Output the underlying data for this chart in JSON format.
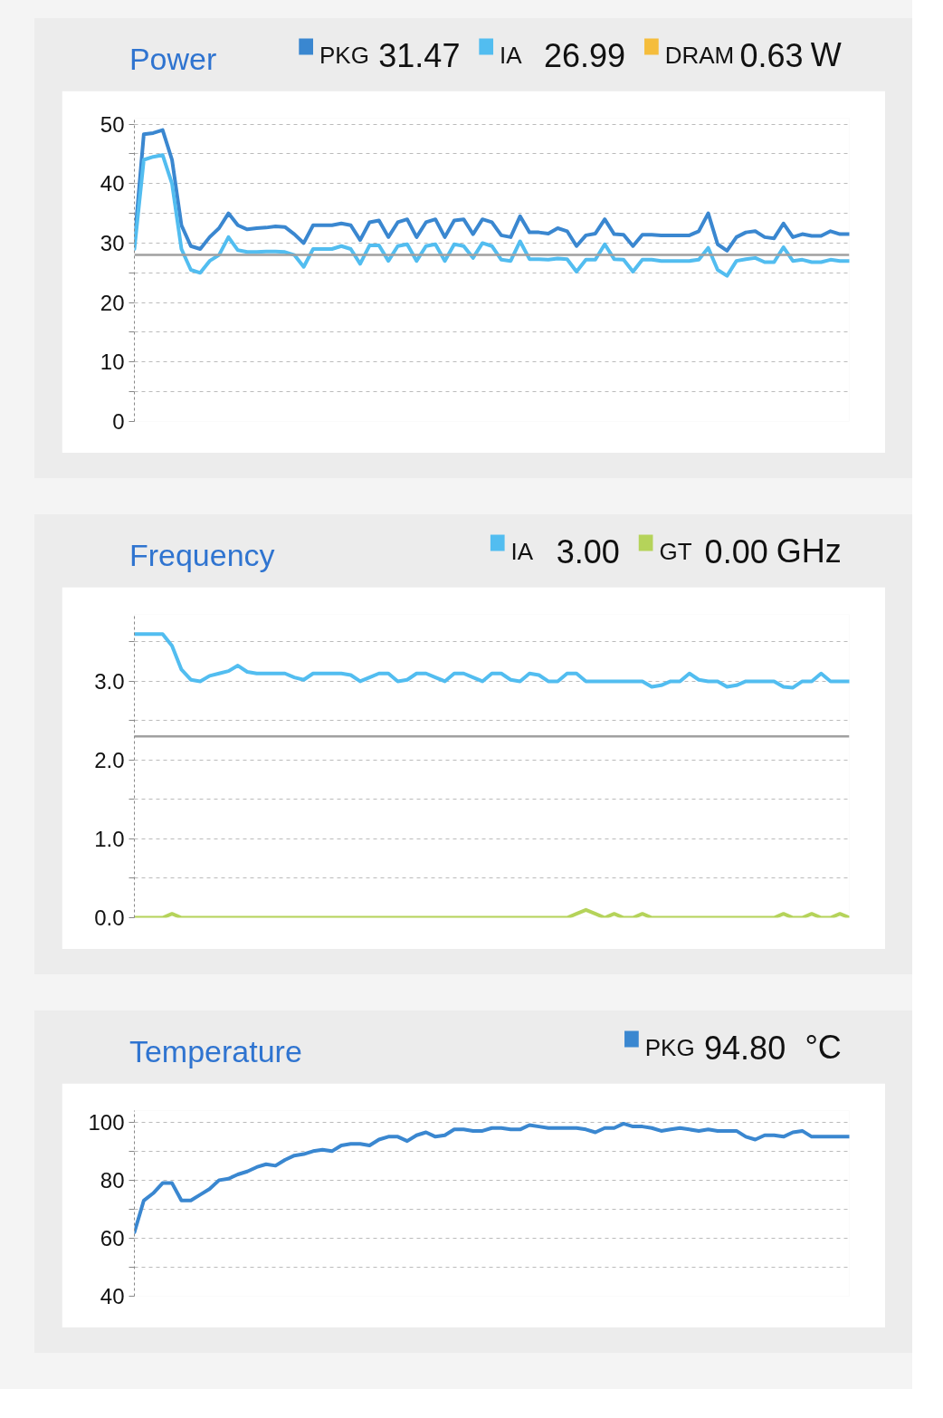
{
  "chart_data": [
    {
      "type": "line",
      "title": "Power",
      "legend": "top",
      "tick_labels": "y",
      "grid": "y",
      "categories": [
        null,
        null,
        null,
        null,
        null,
        null,
        null,
        null,
        null,
        null,
        null,
        null,
        null,
        null,
        null,
        null,
        null,
        null,
        null,
        null,
        null,
        null,
        null,
        null,
        null,
        null,
        null,
        null,
        null,
        null,
        null,
        null,
        null,
        null,
        null,
        null,
        null,
        null,
        null,
        null,
        null,
        null,
        null,
        null,
        null,
        null,
        null,
        null,
        null,
        null,
        null,
        null,
        null,
        null,
        null,
        null,
        null,
        null,
        null,
        null,
        null,
        null,
        null,
        null,
        null,
        null,
        null,
        null,
        null,
        null,
        null,
        null,
        null,
        null,
        null,
        null,
        null
      ],
      "series": [
        {
          "name": "PKG",
          "color": "#3a87d0",
          "values": [
            30,
            48.3,
            48.5,
            49,
            44,
            33,
            29.5,
            29,
            31,
            32.5,
            35,
            33,
            32.3,
            32.5,
            32.6,
            32.8,
            32.7,
            31.5,
            30,
            33,
            33,
            33,
            33.3,
            33,
            30.5,
            33.5,
            33.8,
            31,
            33.5,
            34,
            31,
            33.5,
            34,
            31,
            33.8,
            34,
            31.5,
            34,
            33.5,
            31.3,
            31,
            34.5,
            31.8,
            31.8,
            31.6,
            32.5,
            32,
            29.5,
            31.3,
            31.6,
            34,
            31.5,
            31.4,
            29.5,
            31.4,
            31.4,
            31.3,
            31.3,
            31.3,
            31.3,
            32,
            35,
            29.8,
            28.7,
            31,
            31.8,
            32,
            31,
            30.8,
            33.3,
            31,
            31.5,
            31.2,
            31.2,
            32,
            31.5,
            31.5
          ]
        },
        {
          "name": "IA",
          "color": "#52bdf0",
          "values": [
            29,
            44,
            44.5,
            44.8,
            40,
            29,
            25.5,
            25,
            27,
            28,
            31,
            28.8,
            28.5,
            28.5,
            28.6,
            28.6,
            28.5,
            28,
            26,
            29,
            29,
            29,
            29.5,
            29,
            26.5,
            29.6,
            29.6,
            27,
            29.5,
            29.8,
            27,
            29.5,
            29.8,
            27,
            29.8,
            29.5,
            27.5,
            30,
            29.5,
            27.2,
            27,
            30.3,
            27.3,
            27.3,
            27.2,
            27.4,
            27.3,
            25.2,
            27.2,
            27.2,
            29.8,
            27.3,
            27.2,
            25.2,
            27.2,
            27.2,
            27,
            27,
            27,
            27,
            27.2,
            29.2,
            25.5,
            24.5,
            27,
            27.3,
            27.5,
            26.8,
            26.8,
            29.3,
            27,
            27.2,
            26.8,
            26.8,
            27.2,
            27,
            27
          ]
        },
        {
          "name": "DRAM",
          "color": "#f5bd3c",
          "values": [
            null,
            null,
            null,
            null,
            null,
            null,
            null,
            null,
            null,
            null,
            null,
            null,
            null,
            null,
            null,
            null,
            null,
            null,
            null,
            null,
            null,
            null,
            null,
            null,
            null,
            null,
            null,
            null,
            null,
            null,
            null,
            null,
            null,
            null,
            null,
            null,
            null,
            null,
            null,
            null,
            null,
            null,
            null,
            null,
            null,
            null,
            null,
            null,
            null,
            null,
            null,
            null,
            null,
            null,
            null,
            null,
            null,
            null,
            null,
            null,
            null,
            null,
            null,
            null,
            null,
            null,
            null,
            null,
            null,
            null,
            null,
            null,
            null,
            null,
            null,
            null,
            null
          ]
        }
      ],
      "ylim": [
        0,
        51
      ],
      "yticks": [
        0,
        {
          "value": 5,
          "label": null
        },
        10,
        {
          "value": 15,
          "label": null
        },
        20,
        {
          "value": 25,
          "label": null
        },
        30,
        {
          "value": 35,
          "label": null
        },
        40,
        {
          "value": 45,
          "label": null
        },
        50
      ],
      "ref_lines": [
        {
          "axis": "y",
          "value": 28,
          "color": "#a0a0a0"
        }
      ],
      "annotations": [
        "31.47",
        "26.99",
        "0.63",
        "W"
      ]
    },
    {
      "type": "line",
      "title": "Frequency",
      "legend": "top",
      "tick_labels": "y",
      "grid": "y",
      "categories": [
        null,
        null,
        null,
        null,
        null,
        null,
        null,
        null,
        null,
        null,
        null,
        null,
        null,
        null,
        null,
        null,
        null,
        null,
        null,
        null,
        null,
        null,
        null,
        null,
        null,
        null,
        null,
        null,
        null,
        null,
        null,
        null,
        null,
        null,
        null,
        null,
        null,
        null,
        null,
        null,
        null,
        null,
        null,
        null,
        null,
        null,
        null,
        null,
        null,
        null,
        null,
        null,
        null,
        null,
        null,
        null,
        null,
        null,
        null,
        null,
        null,
        null,
        null,
        null,
        null,
        null,
        null,
        null,
        null,
        null,
        null,
        null,
        null,
        null,
        null,
        null,
        null
      ],
      "series": [
        {
          "name": "IA",
          "color": "#52bdf0",
          "values": [
            3.6,
            3.6,
            3.6,
            3.6,
            3.45,
            3.15,
            3.02,
            3.0,
            3.07,
            3.1,
            3.13,
            3.2,
            3.12,
            3.1,
            3.1,
            3.1,
            3.1,
            3.05,
            3.02,
            3.1,
            3.1,
            3.1,
            3.1,
            3.08,
            3.0,
            3.05,
            3.1,
            3.1,
            3.0,
            3.02,
            3.1,
            3.1,
            3.05,
            3.0,
            3.1,
            3.1,
            3.05,
            3.0,
            3.1,
            3.1,
            3.02,
            3.0,
            3.1,
            3.08,
            3.0,
            3.0,
            3.1,
            3.1,
            3.0,
            3.0,
            3.0,
            3.0,
            3.0,
            3.0,
            3.0,
            2.93,
            2.95,
            3.0,
            3.0,
            3.1,
            3.02,
            3.0,
            3.0,
            2.93,
            2.95,
            3.0,
            3.0,
            3.0,
            3.0,
            2.93,
            2.92,
            3.0,
            3.0,
            3.1,
            3.0,
            3.0,
            3.0
          ]
        },
        {
          "name": "GT",
          "color": "#b5d35a",
          "values": [
            0,
            0,
            0,
            0,
            0.05,
            0,
            0,
            0,
            0,
            0,
            0,
            0,
            0,
            0,
            0,
            0,
            0,
            0,
            0,
            0,
            0,
            0,
            0,
            0,
            0,
            0,
            0,
            0,
            0,
            0,
            0,
            0,
            0,
            0,
            0,
            0,
            0,
            0,
            0,
            0,
            0,
            0,
            0,
            0,
            0,
            0,
            0,
            0.05,
            0.1,
            0.05,
            0,
            0.05,
            0,
            0,
            0.05,
            0,
            0,
            0,
            0,
            0,
            0,
            0,
            0,
            0,
            0,
            0,
            0,
            0,
            0,
            0.05,
            0,
            0,
            0.05,
            0,
            0,
            0.05,
            0
          ]
        }
      ],
      "ylim": [
        0,
        3.85
      ],
      "yticks": [
        {
          "value": 0,
          "label": "0.0"
        },
        {
          "value": 0.5,
          "label": null
        },
        {
          "value": 1,
          "label": "1.0"
        },
        {
          "value": 1.5,
          "label": null
        },
        {
          "value": 2,
          "label": "2.0"
        },
        {
          "value": 2.5,
          "label": null
        },
        {
          "value": 3,
          "label": "3.0"
        },
        {
          "value": 3.5,
          "label": null
        }
      ],
      "ref_lines": [
        {
          "axis": "y",
          "value": 2.3,
          "color": "#a0a0a0"
        }
      ],
      "annotations": [
        "3.00",
        "0.00",
        "GHz"
      ]
    },
    {
      "type": "line",
      "title": "Temperature",
      "legend": "top",
      "tick_labels": "y",
      "grid": "y",
      "categories": [
        null,
        null,
        null,
        null,
        null,
        null,
        null,
        null,
        null,
        null,
        null,
        null,
        null,
        null,
        null,
        null,
        null,
        null,
        null,
        null,
        null,
        null,
        null,
        null,
        null,
        null,
        null,
        null,
        null,
        null,
        null,
        null,
        null,
        null,
        null,
        null,
        null,
        null,
        null,
        null,
        null,
        null,
        null,
        null,
        null,
        null,
        null,
        null,
        null,
        null,
        null,
        null,
        null,
        null,
        null,
        null,
        null,
        null,
        null,
        null,
        null,
        null,
        null,
        null,
        null,
        null,
        null,
        null,
        null,
        null,
        null,
        null,
        null,
        null,
        null,
        null,
        null
      ],
      "series": [
        {
          "name": "PKG",
          "color": "#3a87d0",
          "values": [
            62,
            73,
            75.5,
            79,
            79,
            73,
            73,
            75,
            77,
            80,
            80.5,
            82,
            83,
            84.5,
            85.5,
            85,
            87,
            88.5,
            89,
            90,
            90.5,
            90,
            92,
            92.5,
            92.5,
            92,
            94,
            95,
            95,
            93.5,
            95.5,
            96.5,
            95,
            95.5,
            97.5,
            97.5,
            97,
            97,
            98,
            98,
            97.5,
            97.5,
            99,
            98.5,
            98,
            98,
            98,
            98,
            97.5,
            96.5,
            98,
            98,
            99.5,
            98.5,
            98.5,
            98,
            97,
            97.5,
            98,
            97.5,
            97,
            97.5,
            97,
            97,
            97,
            95,
            94,
            95.5,
            95.5,
            95,
            96.5,
            97,
            95,
            95,
            95,
            95,
            95
          ]
        }
      ],
      "ylim": [
        40,
        104
      ],
      "yticks": [
        40,
        {
          "value": 50,
          "label": null
        },
        60,
        {
          "value": 70,
          "label": null
        },
        80,
        {
          "value": 90,
          "label": null
        },
        100
      ],
      "annotations": [
        "94.80",
        "°C"
      ]
    }
  ]
}
